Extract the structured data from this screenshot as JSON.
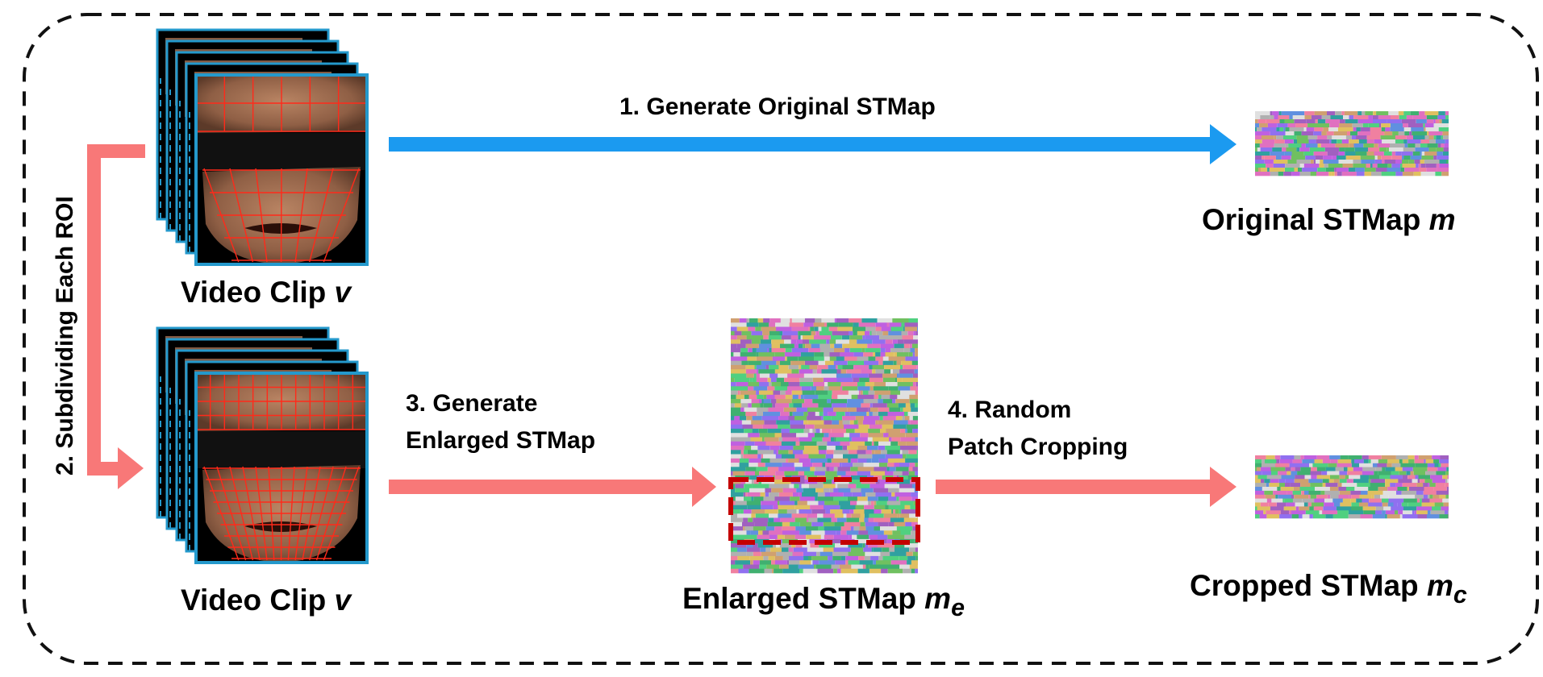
{
  "steps": {
    "generate_original": "1. Generate Original STMap",
    "subdivide": "2. Subdividing Each ROI",
    "generate_enlarged_line1": "3. Generate",
    "generate_enlarged_line2": "Enlarged STMap",
    "random_crop_line1": "4. Random",
    "random_crop_line2": "Patch Cropping"
  },
  "captions": {
    "video_clip_top": {
      "text": "Video Clip ",
      "symbol": "v"
    },
    "video_clip_bottom": {
      "text": "Video Clip ",
      "symbol": "v"
    },
    "original_stmap": {
      "text": "Original STMap ",
      "symbol": "m"
    },
    "enlarged_stmap": {
      "text": "Enlarged STMap ",
      "symbol": "m",
      "subscript": "e"
    },
    "cropped_stmap": {
      "text": "Cropped STMap ",
      "symbol": "m",
      "subscript": "c"
    }
  },
  "colors": {
    "blue_arrow": "#1b9af0",
    "pink_arrow": "#f87878",
    "frame_border": "#2499cc",
    "crop_box": "#c40000",
    "grid_lines": "#ff2a1a",
    "skin": "#9b6a4e",
    "mask_band": "#111111",
    "dashed_border": "#111111"
  },
  "icons": {
    "video_stack": "stacked-face-frames-icon",
    "stmap": "noise-texture-icon"
  }
}
